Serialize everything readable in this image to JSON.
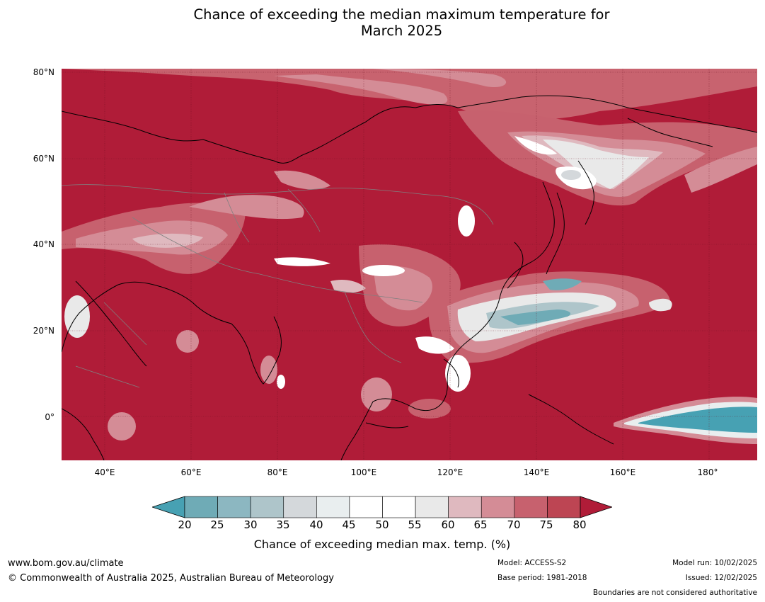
{
  "title": {
    "line1": "Chance of exceeding the median maximum temperature for",
    "line2": "March 2025"
  },
  "map": {
    "lat_ticks": [
      "80°N",
      "60°N",
      "40°N",
      "20°N",
      "0°"
    ],
    "lon_ticks": [
      "40°E",
      "60°E",
      "80°E",
      "100°E",
      "120°E",
      "140°E",
      "160°E",
      "180°"
    ],
    "extent": {
      "lon": [
        30,
        191
      ],
      "lat": [
        -10,
        81
      ]
    },
    "base_color": "#b01c38"
  },
  "colorbar": {
    "ticks": [
      "20",
      "25",
      "30",
      "35",
      "40",
      "45",
      "50",
      "55",
      "60",
      "65",
      "70",
      "75",
      "80"
    ],
    "under_color": "#47a1b3",
    "over_color": "#b01c38",
    "colors": [
      "#6fabb6",
      "#8cb7c1",
      "#aec5ca",
      "#d4d8db",
      "#e9eeef",
      "#ffffff",
      "#ffffff",
      "#e9e9e9",
      "#dfb9bf",
      "#d48c96",
      "#c7616e",
      "#bd4553"
    ],
    "label": "Chance of exceeding median max. temp. (%)"
  },
  "footer": {
    "website": "www.bom.gov.au/climate",
    "copyright": "© Commonwealth of Australia 2025, Australian Bureau of Meteorology",
    "model": "Model: ACCESS-S2",
    "base_period": "Base period: 1981-2018",
    "model_run": "Model run: 10/02/2025",
    "issued": "Issued: 12/02/2025",
    "disclaimer": "Boundaries are not considered authoritative"
  }
}
